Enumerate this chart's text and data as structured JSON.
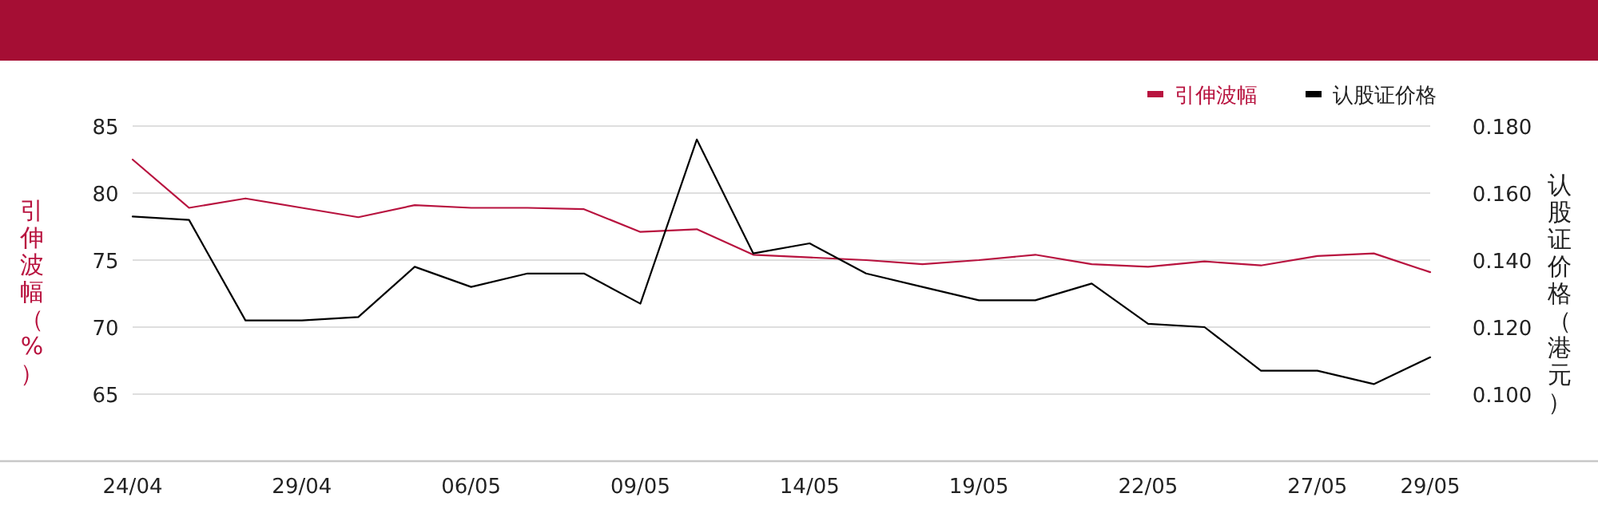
{
  "chart_data": {
    "type": "line",
    "categories": [
      "24/04",
      null,
      null,
      "29/04",
      null,
      null,
      "06/05",
      null,
      null,
      "09/05",
      null,
      null,
      "14/05",
      null,
      null,
      "19/05",
      null,
      null,
      "22/05",
      null,
      null,
      "27/05",
      null,
      "29/05"
    ],
    "series": [
      {
        "name": "引伸波幅",
        "color": "#b8133f",
        "values": [
          82.5,
          78.9,
          79.6,
          78.9,
          78.2,
          79.1,
          78.9,
          78.9,
          78.8,
          77.1,
          77.3,
          75.4,
          75.2,
          75.0,
          74.7,
          75.0,
          75.4,
          74.7,
          74.5,
          74.9,
          74.6,
          75.3,
          75.5,
          74.1
        ]
      },
      {
        "name": "认股证价格",
        "color": "#000000",
        "axis": "y2",
        "values": [
          0.153,
          0.152,
          0.122,
          0.122,
          0.123,
          0.138,
          0.132,
          0.136,
          0.136,
          0.127,
          0.176,
          0.142,
          0.145,
          0.136,
          0.132,
          0.128,
          0.128,
          0.133,
          0.121,
          0.12,
          0.107,
          0.107,
          0.103,
          0.111
        ]
      }
    ],
    "ylabel": "引伸波幅（%）",
    "y2label": "认股证价格（港元）",
    "ylim": [
      60,
      85
    ],
    "yticks": [
      65,
      70,
      75,
      80,
      85
    ],
    "y2lim": [
      0.08,
      0.18
    ],
    "y2ticks": [
      {
        "value": 0.1,
        "label": "0.100"
      },
      {
        "value": 0.12,
        "label": "0.120"
      },
      {
        "value": 0.14,
        "label": "0.140"
      },
      {
        "value": 0.16,
        "label": "0.160"
      },
      {
        "value": 0.18,
        "label": "0.180"
      }
    ],
    "grid": "y",
    "legend": "top right",
    "marker": "none",
    "line_style": "solid"
  }
}
